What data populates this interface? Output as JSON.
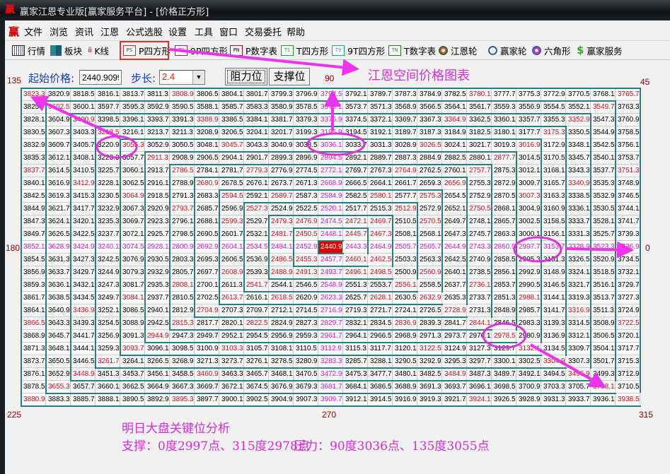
{
  "window": {
    "title": "赢家江恩专业版[赢家服务平台] - [价格正方形]",
    "logo": "赢"
  },
  "menu": {
    "logo": "赢",
    "items": [
      "文件",
      "浏览",
      "资讯",
      "江恩",
      "公式选股",
      "设置",
      "工具",
      "窗口",
      "交易委托",
      "帮助"
    ]
  },
  "toolbar": {
    "items": [
      {
        "label": "行情",
        "icon": "calendar-grid-icon"
      },
      {
        "label": "板块",
        "icon": "blocks-icon"
      },
      {
        "label": "K线",
        "icon": "candlestick-icon"
      },
      {
        "label": "P四方形",
        "icon": "PS",
        "color": "#c03030"
      },
      {
        "label": "9P四方形",
        "icon": "P9",
        "color": "#a020a0"
      },
      {
        "label": "P数字表",
        "icon": "PN",
        "color": "#a01010"
      },
      {
        "label": "T四方形",
        "icon": "TS",
        "color": "#20a020"
      },
      {
        "label": "9T四方形",
        "icon": "T9",
        "color": "#20a0a0"
      },
      {
        "label": "T数字表",
        "icon": "TN",
        "color": "#208020"
      },
      {
        "label": "江恩轮",
        "icon": "gann-wheel-icon",
        "color": "#2c6a2c"
      },
      {
        "label": "赢家轮",
        "icon": "big-wheel-icon",
        "color": "#2a6a8a"
      },
      {
        "label": "六角形",
        "icon": "hexagon-icon",
        "color": "#5050c0"
      },
      {
        "label": "赢家服务",
        "icon": "dollar-icon",
        "color": "#3aa040"
      }
    ]
  },
  "controls": {
    "start_price_label": "起始价格:",
    "start_price_value": "2440.9099",
    "step_label": "步长:",
    "step_value": "2.4",
    "resistance_button": "阻力位",
    "support_button": "支撑位"
  },
  "angles": {
    "a135": "135",
    "a90": "90",
    "a45": "45",
    "a180": "180",
    "a0": "0",
    "a225": "225",
    "a270": "270",
    "a315": "315"
  },
  "grid": {
    "size": 25,
    "start": 2440.9099,
    "step": 2.4,
    "highlighted": [
      "3055.30",
      "3036.10",
      "2997.70",
      "2978.50"
    ],
    "colors": {
      "corner_half": "#d01020",
      "cross": "#d020d0",
      "highlight": "#ffee00",
      "center": "#e00000",
      "spiral_line": "#2a7d80"
    }
  },
  "annotations": {
    "chart_title": "江恩空间价格图表",
    "analysis_title": "明日大盘关键位分析",
    "support_text": "支撑：0度2997点、315度2978点",
    "pressure_text": "压力：90度3036点、135度3055点",
    "color": "#e040e0"
  }
}
